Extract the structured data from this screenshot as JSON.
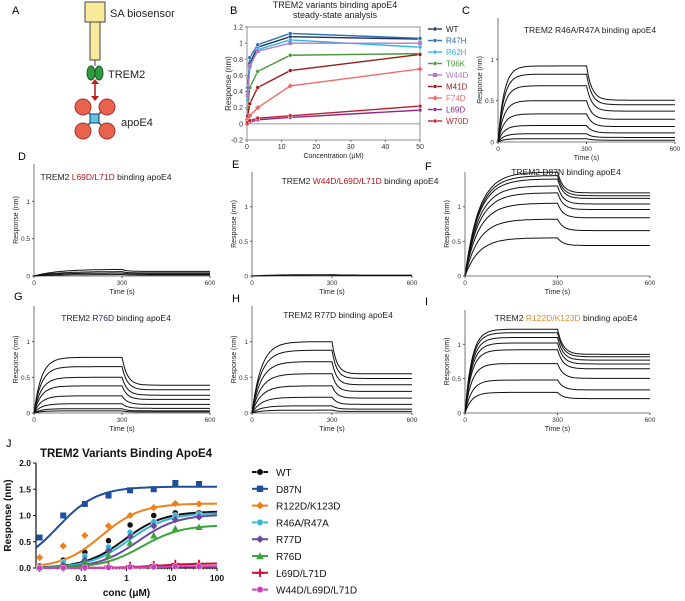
{
  "panels": {
    "A": {
      "letter": "A",
      "sensor_label": "SA biosensor",
      "trem2_label": "TREM2",
      "apoe4_label": "apoE4"
    },
    "B": {
      "letter": "B"
    },
    "C": {
      "letter": "C"
    },
    "D": {
      "letter": "D"
    },
    "E": {
      "letter": "E"
    },
    "F": {
      "letter": "F"
    },
    "G": {
      "letter": "G"
    },
    "H": {
      "letter": "H"
    },
    "I": {
      "letter": "I"
    },
    "J": {
      "letter": "J"
    }
  },
  "chart_data": [
    {
      "id": "B",
      "type": "line",
      "title": "TREM2 variants binding apoE4",
      "subtitle": "steady-state analysis",
      "xlabel": "Concentration (μM)",
      "ylabel": "Response (nm)",
      "xlim": [
        0,
        50
      ],
      "ylim": [
        -0.2,
        1.2
      ],
      "xticks": [
        "0",
        "10",
        "20",
        "30",
        "40",
        "50"
      ],
      "yticks": [
        "-0.2",
        "0",
        "0.2",
        "0.4",
        "0.6",
        "0.8",
        "1",
        "1.2"
      ],
      "legend_position": "right",
      "x": [
        0.05,
        0.2,
        0.8,
        3.1,
        12.5,
        50
      ],
      "series": [
        {
          "name": "WT",
          "color": "#1f2f5a",
          "marker": "circle",
          "values": [
            0.05,
            0.35,
            0.75,
            0.95,
            1.08,
            1.05
          ]
        },
        {
          "name": "R47H",
          "color": "#2a6fb0",
          "marker": "circle",
          "values": [
            0.06,
            0.45,
            0.82,
            0.98,
            1.12,
            1.06
          ]
        },
        {
          "name": "R62H",
          "color": "#2db3e6",
          "marker": "circle",
          "values": [
            0.05,
            0.3,
            0.7,
            0.92,
            1.04,
            0.95
          ]
        },
        {
          "name": "T96K",
          "color": "#4a9a3a",
          "marker": "circle",
          "values": [
            0.03,
            0.18,
            0.45,
            0.65,
            0.85,
            0.87
          ]
        },
        {
          "name": "W44D",
          "color": "#b07cc6",
          "marker": "square",
          "values": [
            0.04,
            0.35,
            0.72,
            0.9,
            1.0,
            1.0
          ]
        },
        {
          "name": "M41D",
          "color": "#9b1b1b",
          "marker": "circle",
          "values": [
            0.02,
            0.1,
            0.25,
            0.45,
            0.66,
            0.86
          ]
        },
        {
          "name": "F74D",
          "color": "#f06a6a",
          "marker": "diamond",
          "values": [
            0.01,
            0.05,
            0.1,
            0.2,
            0.47,
            0.68
          ]
        },
        {
          "name": "L69D",
          "color": "#8a2a8a",
          "marker": "circle",
          "values": [
            0.0,
            0.01,
            0.02,
            0.05,
            0.08,
            0.17
          ]
        },
        {
          "name": "W70D",
          "color": "#c01f2f",
          "marker": "circle",
          "values": [
            0.0,
            0.02,
            0.04,
            0.07,
            0.1,
            0.22
          ]
        }
      ]
    },
    {
      "id": "C",
      "type": "line",
      "title_prefix": "TREM2 ",
      "title_mut": "R46A/R47A",
      "title_suffix": " binding apoE4",
      "title_mut_color": "#222222",
      "xlabel": "Time (s)",
      "ylabel": "Response (nm)",
      "xlim": [
        0,
        600
      ],
      "ylim": [
        0,
        1.5
      ],
      "xticks": [
        "0",
        "300",
        "600"
      ],
      "yticks": [
        "0",
        "0.5",
        "1"
      ],
      "plateaus": [
        0.92,
        0.82,
        0.68,
        0.5,
        0.34,
        0.2,
        0.1,
        0.04
      ],
      "tau": 20,
      "dissoc_ratio": 0.45
    },
    {
      "id": "D",
      "type": "line",
      "title_prefix": "TREM2 ",
      "title_mut": "L69D/L71D",
      "title_suffix": " binding apoE4",
      "title_mut_color": "#b5121b",
      "xlabel": "Time (s)",
      "ylabel": "Response (nm)",
      "xlim": [
        0,
        600
      ],
      "ylim": [
        0,
        1.5
      ],
      "xticks": [
        "0",
        "300",
        "600"
      ],
      "yticks": [
        "0",
        "0.5",
        "1"
      ],
      "plateaus": [
        0.09,
        0.06,
        0.04,
        0.02
      ],
      "tau": 80,
      "dissoc_ratio": 0.3
    },
    {
      "id": "E",
      "type": "line",
      "title_prefix": "TREM2 ",
      "title_mut": "W44D/L69D/L71D",
      "title_suffix": " binding apoE4",
      "title_mut_color": "#b5121b",
      "xlabel": "Time (s)",
      "ylabel": "Response (nm)",
      "xlim": [
        0,
        600
      ],
      "ylim": [
        0,
        1.5
      ],
      "xticks": [
        "0",
        "300",
        "600"
      ],
      "yticks": [
        "0",
        "0.5",
        "1"
      ],
      "plateaus": [
        0.02,
        0.01
      ],
      "tau": 80,
      "dissoc_ratio": 0.3
    },
    {
      "id": "F",
      "type": "line",
      "title_prefix": "TREM2 ",
      "title_mut": "D87N",
      "title_suffix": "  binding apoE4",
      "title_mut_color": "#222222",
      "xlabel": "Time (s)",
      "ylabel": "Response (nm)",
      "xlim": [
        0,
        600
      ],
      "ylim": [
        0,
        1.5
      ],
      "xticks": [
        "0",
        "300",
        "600"
      ],
      "yticks": [
        "0",
        "0.5",
        "1"
      ],
      "plateaus": [
        1.5,
        1.45,
        1.4,
        1.3,
        1.2,
        1.05,
        0.82,
        0.55
      ],
      "tau": 45,
      "dissoc_ratio": 0.2
    },
    {
      "id": "G",
      "type": "line",
      "title_prefix": "TREM2 ",
      "title_mut": "R76D",
      "title_suffix": "  binding apoE4",
      "title_mut_color": "#2a2a7a",
      "xlabel": "Time (s)",
      "ylabel": "Response (nm)",
      "xlim": [
        0,
        600
      ],
      "ylim": [
        0,
        1.5
      ],
      "xticks": [
        "0",
        "300",
        "600"
      ],
      "yticks": [
        "0",
        "0.5",
        "1"
      ],
      "plateaus": [
        0.78,
        0.65,
        0.5,
        0.38,
        0.24,
        0.13,
        0.06,
        0.03
      ],
      "tau": 25,
      "dissoc_ratio": 0.5
    },
    {
      "id": "H",
      "type": "line",
      "title_prefix": "TREM2 ",
      "title_mut": "R77D",
      "title_suffix": "  binding apoE4",
      "title_mut_color": "#222222",
      "xlabel": "Time (s)",
      "ylabel": "Response (nm)",
      "xlim": [
        0,
        600
      ],
      "ylim": [
        0,
        1.5
      ],
      "xticks": [
        "0",
        "300",
        "600"
      ],
      "yticks": [
        "0",
        "0.5",
        "1"
      ],
      "plateaus": [
        1.0,
        0.88,
        0.72,
        0.55,
        0.38,
        0.22,
        0.1,
        0.04
      ],
      "tau": 35,
      "dissoc_ratio": 0.45
    },
    {
      "id": "I",
      "type": "line",
      "title_prefix": "TREM2 ",
      "title_mut": "R122D/K123D",
      "title_suffix": "  binding apoE4",
      "title_mut_color": "#e08a1e",
      "xlabel": "Time (s)",
      "ylabel": "Response (nm)",
      "xlim": [
        0,
        600
      ],
      "ylim": [
        0,
        1.5
      ],
      "xticks": [
        "0",
        "300",
        "600"
      ],
      "yticks": [
        "0",
        "0.5",
        "1"
      ],
      "plateaus": [
        1.22,
        1.17,
        1.1,
        1.02,
        0.92,
        0.72,
        0.48,
        0.3
      ],
      "tau": 22,
      "dissoc_ratio": 0.3
    },
    {
      "id": "J",
      "type": "scatter",
      "title": "TREM2 Variants Binding ApoE4",
      "xlabel": "conc (μM)",
      "ylabel": "Response (nm)",
      "xscale": "log",
      "xlim": [
        0.01,
        100
      ],
      "ylim": [
        0,
        2.0
      ],
      "xticks": [
        "0.1",
        "1",
        "10",
        "100"
      ],
      "yticks": [
        "0.0",
        "0.5",
        "1.0",
        "1.5",
        "2.0"
      ],
      "legend_position": "right",
      "x": [
        0.012,
        0.04,
        0.12,
        0.4,
        1.2,
        4.0,
        12.0,
        40.0
      ],
      "series": [
        {
          "name": "WT",
          "color": "#111111",
          "marker": "circle",
          "values": [
            0.04,
            0.15,
            0.3,
            0.52,
            0.82,
            1.0,
            1.05,
            1.05
          ],
          "fit_bmax": 1.08,
          "fit_kd": 0.9
        },
        {
          "name": "D87N",
          "color": "#1f4e9b",
          "marker": "square",
          "values": [
            0.58,
            1.0,
            1.22,
            1.38,
            1.48,
            1.5,
            1.62,
            1.6
          ],
          "fit_bmax": 1.55,
          "fit_kd": 0.03
        },
        {
          "name": "R122D/K123D",
          "color": "#f07f16",
          "marker": "diamond",
          "values": [
            0.2,
            0.42,
            0.62,
            0.8,
            1.0,
            1.15,
            1.23,
            1.22
          ],
          "fit_bmax": 1.23,
          "fit_kd": 0.28
        },
        {
          "name": "R46A/R47A",
          "color": "#35b6d8",
          "marker": "circle",
          "values": [
            0.02,
            0.1,
            0.22,
            0.4,
            0.68,
            0.88,
            1.0,
            1.02
          ],
          "fit_bmax": 1.05,
          "fit_kd": 1.1
        },
        {
          "name": "R77D",
          "color": "#6b4aa0",
          "marker": "diamond",
          "values": [
            0.01,
            0.05,
            0.15,
            0.33,
            0.6,
            0.8,
            0.92,
            0.97
          ],
          "fit_bmax": 1.02,
          "fit_kd": 1.8
        },
        {
          "name": "R76D",
          "color": "#3aa33a",
          "marker": "triangle",
          "values": [
            0.01,
            0.04,
            0.1,
            0.24,
            0.48,
            0.62,
            0.75,
            0.78
          ],
          "fit_bmax": 0.82,
          "fit_kd": 2.2
        },
        {
          "name": "L69D/L71D",
          "color": "#c8102e",
          "marker": "plus",
          "values": [
            0.0,
            0.01,
            0.02,
            0.03,
            0.04,
            0.06,
            0.08,
            0.08
          ],
          "fit_bmax": 0.09,
          "fit_kd": 5.0
        },
        {
          "name": "W44D/L69D/L71D",
          "color": "#c83fc0",
          "marker": "circle",
          "values": [
            0.0,
            0.0,
            0.01,
            0.01,
            0.02,
            0.02,
            0.03,
            0.03
          ],
          "fit_bmax": 0.035,
          "fit_kd": 5.0
        }
      ]
    }
  ]
}
